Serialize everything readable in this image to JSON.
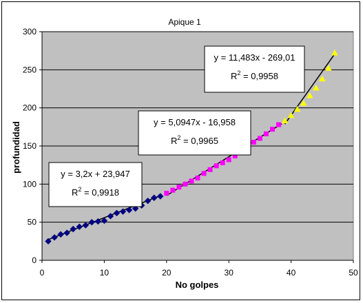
{
  "chart_data": {
    "type": "scatter",
    "title": "Apique 1",
    "xlabel": "No golpes",
    "ylabel": "profundidad",
    "xlim": [
      0,
      50
    ],
    "ylim": [
      0,
      300
    ],
    "x_ticks": [
      0,
      10,
      20,
      30,
      40,
      50
    ],
    "y_ticks": [
      0,
      50,
      100,
      150,
      200,
      250,
      300
    ],
    "grid": true,
    "plot_background": "#c0c0c0",
    "series": [
      {
        "marker": "diamond",
        "color": "#000080",
        "x": [
          1,
          2,
          3,
          4,
          5,
          6,
          7,
          8,
          9,
          10,
          11,
          12,
          13,
          14,
          15,
          16,
          17,
          18,
          19
        ],
        "y": [
          25,
          30,
          34,
          36,
          41,
          44,
          46,
          50,
          51,
          52,
          58,
          62,
          64,
          66,
          68,
          72,
          78,
          82,
          84
        ],
        "trendline": {
          "slope": 3.2,
          "intercept": 23.947,
          "x_range": [
            1,
            19
          ],
          "equation": "y = 3,2x + 23,947",
          "r2_label": "R",
          "r2_value": " = 0,9918"
        }
      },
      {
        "marker": "square",
        "color": "#ff00ff",
        "x": [
          20,
          21,
          22,
          23,
          24,
          25,
          26,
          27,
          28,
          29,
          30,
          31,
          32,
          33,
          34,
          35,
          36,
          37,
          38
        ],
        "y": [
          88,
          92,
          96,
          100,
          104,
          108,
          114,
          119,
          124,
          128,
          132,
          137,
          143,
          148,
          155,
          160,
          166,
          172,
          178
        ],
        "trendline": {
          "slope": 5.0947,
          "intercept": -16.958,
          "x_range": [
            20,
            38.5
          ],
          "equation": "y = 5,0947x - 16,958",
          "r2_label": "R",
          "r2_value": " = 0,9965"
        }
      },
      {
        "marker": "triangle",
        "color": "#ffff00",
        "x": [
          39,
          40,
          41,
          42,
          43,
          44,
          45,
          46,
          47
        ],
        "y": [
          183,
          190,
          198,
          206,
          216,
          226,
          238,
          252,
          272
        ],
        "trendline": {
          "slope": 11.483,
          "intercept": -269.01,
          "x_range": [
            39,
            47
          ],
          "equation": "y = 11,483x - 269,01",
          "r2_label": "R",
          "r2_value": " = 0,9958"
        }
      }
    ]
  }
}
